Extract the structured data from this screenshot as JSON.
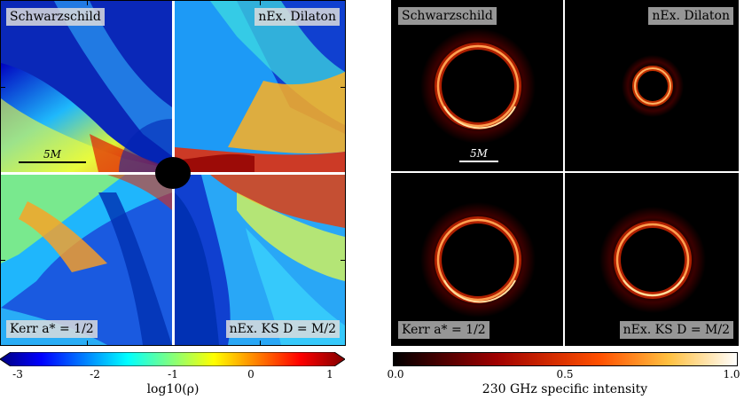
{
  "left_figure": {
    "panels": {
      "top_left": "Schwarzschild",
      "top_right": "nEx. Dilaton",
      "bottom_left": "Kerr a* = 1/2",
      "bottom_right": "nEx. KS D = M/2"
    },
    "scale_label": "5M",
    "colorbar": {
      "ticks": [
        "-3",
        "-2",
        "-1",
        "0",
        "1"
      ],
      "title": "log10(ρ)"
    }
  },
  "right_figure": {
    "panels": {
      "top_left": "Schwarzschild",
      "top_right": "nEx. Dilaton",
      "bottom_left": "Kerr a* = 1/2",
      "bottom_right": "nEx. KS D = M/2"
    },
    "scale_label": "5M",
    "colorbar": {
      "ticks": [
        "0.0",
        "0.5",
        "1.0"
      ],
      "title": "230 GHz specific intensity"
    }
  },
  "colors": {
    "jet_low": "#00007f",
    "jet_high": "#7f0000",
    "hot_low": "#000000",
    "hot_high": "#ffffff"
  }
}
